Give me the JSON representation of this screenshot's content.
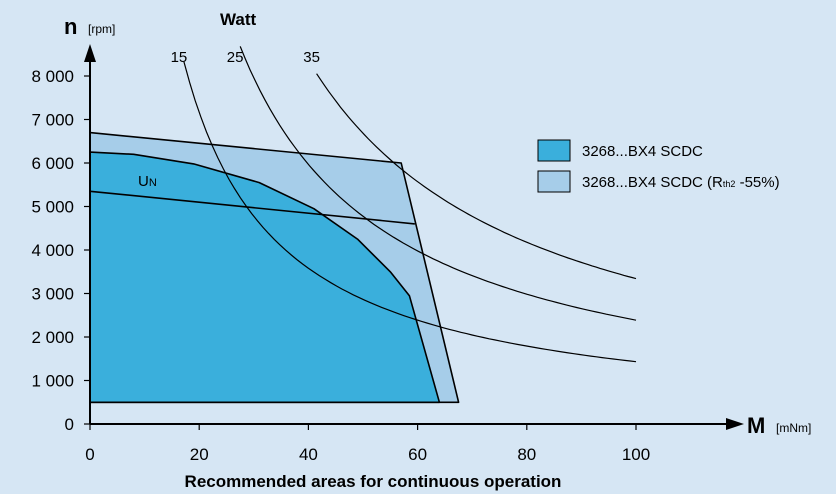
{
  "chart_data": {
    "type": "area",
    "title": "",
    "caption": "Recommended areas for continuous operation",
    "xlabel": "M",
    "xunit": "[mNm]",
    "ylabel": "n",
    "yunit": "[rpm]",
    "xlim": [
      0,
      100
    ],
    "ylim": [
      0,
      8000
    ],
    "x_ticks": [
      "0",
      "20",
      "40",
      "60",
      "80",
      "100"
    ],
    "y_ticks": [
      "0",
      "1 000",
      "2 000",
      "3 000",
      "4 000",
      "5 000",
      "6 000",
      "7 000",
      "8 000"
    ],
    "x_tick_values": [
      0,
      20,
      40,
      60,
      80,
      100
    ],
    "y_tick_values": [
      0,
      1000,
      2000,
      3000,
      4000,
      5000,
      6000,
      7000,
      8000
    ],
    "grid": false,
    "legend_position": "right",
    "colors": {
      "standard": "#3aafdc",
      "extended": "#a6cde9",
      "background": "#d6e6f4"
    },
    "series": [
      {
        "name": "3268...BX4 SCDC (R_th2 -55%)",
        "legend_main": "3268...BX4 SCDC (R",
        "legend_sub": "th2",
        "legend_tail": " -55%)",
        "points": [
          [
            0,
            500
          ],
          [
            67.5,
            500
          ],
          [
            57,
            6000
          ],
          [
            0,
            6700
          ]
        ]
      },
      {
        "name": "3268...BX4 SCDC",
        "legend_main": "3268...BX4 SCDC",
        "legend_sub": "",
        "legend_tail": "",
        "points": [
          [
            0,
            500
          ],
          [
            64,
            500
          ],
          [
            58.5,
            2950
          ],
          [
            55,
            3500
          ],
          [
            49,
            4250
          ],
          [
            41,
            4950
          ],
          [
            31,
            5550
          ],
          [
            19,
            5980
          ],
          [
            8,
            6200
          ],
          [
            0,
            6250
          ]
        ]
      }
    ],
    "rated_voltage_line": {
      "label_main": "U",
      "label_sub": "N",
      "points": [
        [
          0,
          5350
        ],
        [
          59.5,
          4600
        ]
      ]
    },
    "power_curves": {
      "title": "Watt",
      "curves": [
        {
          "label": "15",
          "watts": 15,
          "m_start": 17.2,
          "m_end": 100
        },
        {
          "label": "25",
          "watts": 25,
          "m_start": 27.5,
          "m_end": 100
        },
        {
          "label": "35",
          "watts": 35,
          "m_start": 41.5,
          "m_end": 100
        }
      ]
    }
  }
}
